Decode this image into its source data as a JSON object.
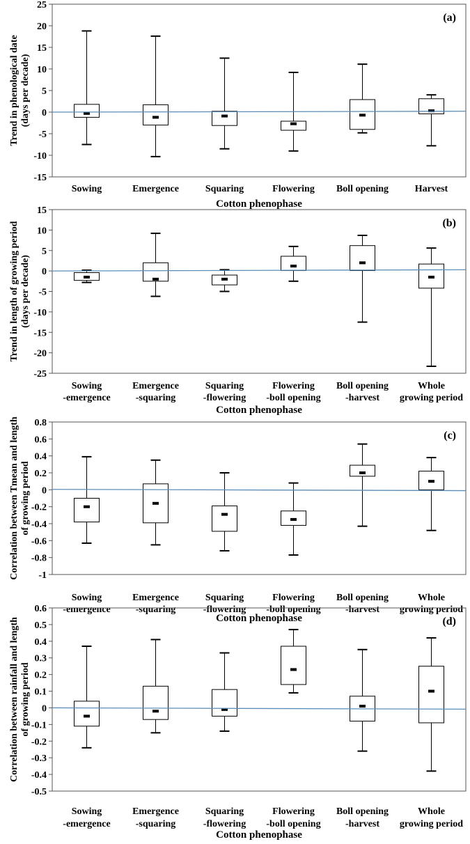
{
  "chart_data": [
    {
      "type": "box",
      "panel_label": "(a)",
      "ylabel_lines": [
        "Trend in phenological date",
        "(days per decade)"
      ],
      "xlabel": "Cotton phenophase",
      "ylim": [
        -15,
        25
      ],
      "yticks": [
        -15,
        -10,
        -5,
        0,
        5,
        10,
        15,
        20,
        25
      ],
      "categories": [
        [
          "Sowing"
        ],
        [
          "Emergence"
        ],
        [
          "Squaring"
        ],
        [
          "Flowering"
        ],
        [
          "Boll opening"
        ],
        [
          "Harvest"
        ]
      ],
      "boxes": [
        {
          "min": -7.5,
          "q1": -1.2,
          "median": -0.3,
          "q3": 1.8,
          "max": 18.8
        },
        {
          "min": -10.3,
          "q1": -3.0,
          "median": -1.2,
          "q3": 1.7,
          "max": 17.6
        },
        {
          "min": -8.5,
          "q1": -3.1,
          "median": -0.9,
          "q3": 0.2,
          "max": 12.5
        },
        {
          "min": -9.0,
          "q1": -4.2,
          "median": -2.7,
          "q3": -2.1,
          "max": 9.2
        },
        {
          "min": -4.8,
          "q1": -4.0,
          "median": -0.7,
          "q3": 2.9,
          "max": 11.1
        },
        {
          "min": -7.8,
          "q1": -0.4,
          "median": 0.3,
          "q3": 3.1,
          "max": 4.0
        }
      ],
      "reference_line": [
        0.0,
        0.2
      ],
      "line_color": "#5b8db8",
      "grid": false
    },
    {
      "type": "box",
      "panel_label": "(b)",
      "ylabel_lines": [
        "Trend in length of growing period",
        "(days per decade)"
      ],
      "xlabel": "Cotton phenophase",
      "ylim": [
        -25,
        15
      ],
      "yticks": [
        -25,
        -20,
        -15,
        -10,
        -5,
        0,
        5,
        10,
        15
      ],
      "categories": [
        [
          "Sowing",
          "-emergence"
        ],
        [
          "Emergence",
          "-squaring"
        ],
        [
          "Squaring",
          "-flowering"
        ],
        [
          "Flowering",
          "-boll opening"
        ],
        [
          "Boll opening",
          "-harvest"
        ],
        [
          "Whole",
          "growing period"
        ]
      ],
      "boxes": [
        {
          "min": -2.8,
          "q1": -2.3,
          "median": -1.5,
          "q3": -0.4,
          "max": 0.2
        },
        {
          "min": -6.2,
          "q1": -2.5,
          "median": -2.0,
          "q3": 2.0,
          "max": 9.2
        },
        {
          "min": -5.0,
          "q1": -3.4,
          "median": -2.0,
          "q3": -1.0,
          "max": 0.3
        },
        {
          "min": -2.5,
          "q1": 0.1,
          "median": 1.2,
          "q3": 3.6,
          "max": 6.0
        },
        {
          "min": -12.5,
          "q1": 0.1,
          "median": 2.0,
          "q3": 6.2,
          "max": 8.7
        },
        {
          "min": -23.3,
          "q1": -4.2,
          "median": -1.5,
          "q3": 1.7,
          "max": 5.6
        }
      ],
      "reference_line": [
        0.0,
        0.3
      ],
      "line_color": "#5b8db8",
      "grid": false
    },
    {
      "type": "box",
      "panel_label": "(c)",
      "ylabel_lines": [
        "Correlation between Tmean and length",
        "of growing period"
      ],
      "xlabel": "Cotton phenophase",
      "ylim": [
        -1,
        0.8
      ],
      "yticks": [
        -1,
        -0.8,
        -0.6,
        -0.4,
        -0.2,
        0,
        0.2,
        0.4,
        0.6,
        0.8
      ],
      "categories": [
        [
          "Sowing",
          "-emergence"
        ],
        [
          "Emergence",
          "-squaring"
        ],
        [
          "Squaring",
          "-flowering"
        ],
        [
          "Flowering",
          "-boll opening"
        ],
        [
          "Boll opening",
          "-harvest"
        ],
        [
          "Whole",
          "growing period"
        ]
      ],
      "boxes": [
        {
          "min": -0.63,
          "q1": -0.38,
          "median": -0.2,
          "q3": -0.1,
          "max": 0.39
        },
        {
          "min": -0.65,
          "q1": -0.39,
          "median": -0.16,
          "q3": 0.07,
          "max": 0.35
        },
        {
          "min": -0.72,
          "q1": -0.49,
          "median": -0.29,
          "q3": -0.19,
          "max": 0.2
        },
        {
          "min": -0.77,
          "q1": -0.42,
          "median": -0.35,
          "q3": -0.25,
          "max": 0.08
        },
        {
          "min": -0.43,
          "q1": 0.16,
          "median": 0.2,
          "q3": 0.29,
          "max": 0.54
        },
        {
          "min": -0.48,
          "q1": 0.0,
          "median": 0.1,
          "q3": 0.22,
          "max": 0.38
        }
      ],
      "reference_line": [
        0.005,
        -0.01
      ],
      "line_color": "#5b8db8",
      "grid": false
    },
    {
      "type": "box",
      "panel_label": "(d)",
      "ylabel_lines": [
        "Correlation between rainfall and length",
        "of growing period"
      ],
      "xlabel": "Cotton phenophase",
      "ylim": [
        -0.5,
        0.6
      ],
      "yticks": [
        -0.5,
        -0.4,
        -0.3,
        -0.2,
        -0.1,
        0,
        0.1,
        0.2,
        0.3,
        0.4,
        0.5,
        0.6
      ],
      "categories": [
        [
          "Sowing",
          "-emergence"
        ],
        [
          "Emergence",
          "-squaring"
        ],
        [
          "Squaring",
          "-flowering"
        ],
        [
          "Flowering",
          "-boll opening"
        ],
        [
          "Boll opening",
          "-harvest"
        ],
        [
          "Whole",
          "growing period"
        ]
      ],
      "boxes": [
        {
          "min": -0.24,
          "q1": -0.11,
          "median": -0.05,
          "q3": 0.04,
          "max": 0.37
        },
        {
          "min": -0.15,
          "q1": -0.07,
          "median": -0.02,
          "q3": 0.13,
          "max": 0.41
        },
        {
          "min": -0.14,
          "q1": -0.05,
          "median": -0.01,
          "q3": 0.11,
          "max": 0.33
        },
        {
          "min": 0.09,
          "q1": 0.14,
          "median": 0.23,
          "q3": 0.37,
          "max": 0.47
        },
        {
          "min": -0.26,
          "q1": -0.08,
          "median": 0.01,
          "q3": 0.07,
          "max": 0.35
        },
        {
          "min": -0.38,
          "q1": -0.09,
          "median": 0.1,
          "q3": 0.25,
          "max": 0.42
        }
      ],
      "reference_line": [
        0.0,
        -0.008
      ],
      "line_color": "#5b8db8",
      "grid": false
    }
  ]
}
